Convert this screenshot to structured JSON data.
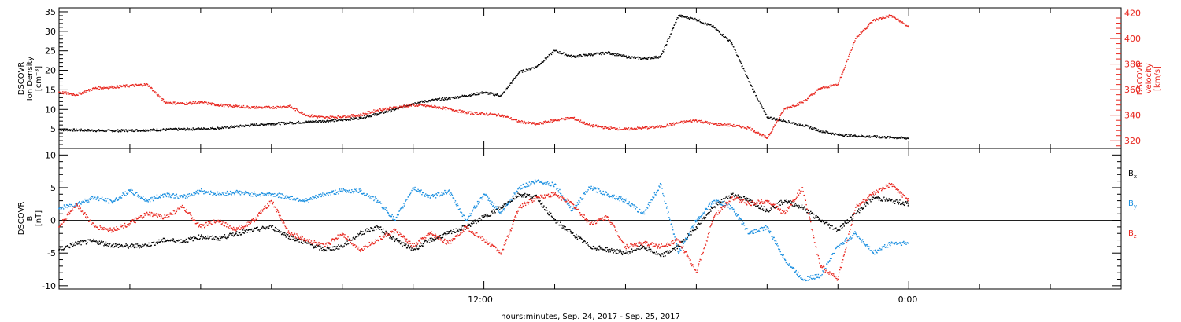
{
  "colors": {
    "black": "#000000",
    "red": "#e8261e",
    "blue": "#1a8fe0"
  },
  "xlabel": "hours:minutes, Sep. 24, 2017 - Sep. 25, 2017",
  "x_tick_labels": [
    "12:00",
    "0:00"
  ],
  "chart_data": [
    {
      "type": "scatter",
      "panel": "density-velocity",
      "xlim": [
        0,
        30
      ],
      "x_unit": "hours since 2017-09-24 00:00",
      "ylabel_left": [
        "DSCOVR",
        "Ion Density",
        "[cm⁻³]"
      ],
      "ylabel_right": [
        "DSCOVR",
        "Velocity",
        "[km/s]"
      ],
      "ylim_left": [
        0,
        36
      ],
      "ylim_right": [
        314,
        424
      ],
      "yticks_left": [
        "5",
        "10",
        "15",
        "20",
        "25",
        "30",
        "35"
      ],
      "yticks_right": [
        "320",
        "340",
        "360",
        "380",
        "400",
        "420"
      ],
      "series": [
        {
          "axis": "left",
          "color": "#000000",
          "x": [
            0,
            0.5,
            1,
            1.5,
            2,
            2.5,
            3,
            3.5,
            4,
            4.5,
            5,
            5.5,
            6,
            6.5,
            7,
            7.5,
            8,
            8.5,
            9,
            9.5,
            10,
            10.5,
            11,
            11.5,
            12,
            12.5,
            13,
            13.5,
            14,
            14.5,
            15,
            15.5,
            16,
            16.5,
            17,
            17.5,
            18,
            18.5,
            19,
            19.5,
            20,
            20.5,
            21,
            21.5,
            22,
            22.5,
            23,
            23.5,
            24
          ],
          "y": [
            4.8,
            4.7,
            4.6,
            4.5,
            4.6,
            4.7,
            4.8,
            4.9,
            5.0,
            5.2,
            5.6,
            6.0,
            6.3,
            6.5,
            6.8,
            7.0,
            7.3,
            7.8,
            8.8,
            10.0,
            11.5,
            12.3,
            12.8,
            13.5,
            14.3,
            13.5,
            19.5,
            21.0,
            25.0,
            23.5,
            24.0,
            24.5,
            23.5,
            23.0,
            23.5,
            34.0,
            33.0,
            31.0,
            27.0,
            17.0,
            8.0,
            7.0,
            6.0,
            4.5,
            3.5,
            3.2,
            3.0,
            2.8,
            2.6
          ]
        },
        {
          "axis": "right",
          "color": "#e8261e",
          "x": [
            0,
            0.5,
            1,
            1.5,
            2,
            2.5,
            3,
            3.5,
            4,
            4.5,
            5,
            5.5,
            6,
            6.5,
            7,
            7.5,
            8,
            8.5,
            9,
            9.5,
            10,
            10.5,
            11,
            11.5,
            12,
            12.5,
            13,
            13.5,
            14,
            14.5,
            15,
            15.5,
            16,
            16.5,
            17,
            17.5,
            18,
            18.5,
            19,
            19.5,
            20,
            20.5,
            21,
            21.5,
            22,
            22.5,
            23,
            23.5,
            24
          ],
          "y": [
            358,
            356,
            361,
            362,
            363,
            364,
            350,
            349,
            350,
            348,
            347,
            346,
            346,
            347,
            340,
            338,
            339,
            340,
            344,
            346,
            348,
            347,
            345,
            342,
            341,
            340,
            335,
            333,
            336,
            338,
            332,
            330,
            329,
            330,
            331,
            334,
            336,
            333,
            332,
            330,
            322,
            345,
            350,
            361,
            364,
            400,
            414,
            418,
            409
          ]
        }
      ]
    },
    {
      "type": "scatter",
      "panel": "magnetic-field",
      "xlim": [
        0,
        30
      ],
      "x_unit": "hours since 2017-09-24 00:00",
      "ylabel_left": [
        "DSCOVR",
        "B",
        "[nT]"
      ],
      "ylim": [
        -10.5,
        11
      ],
      "yticks": [
        "-10",
        "-5",
        "0",
        "5",
        "10"
      ],
      "zero_line": true,
      "legend": [
        "Bx",
        "By",
        "Bz"
      ],
      "legend_placement": "right",
      "series": [
        {
          "name": "Bx",
          "color": "#000000",
          "x": [
            0,
            0.5,
            1,
            1.5,
            2,
            2.5,
            3,
            3.5,
            4,
            4.5,
            5,
            5.5,
            6,
            6.5,
            7,
            7.5,
            8,
            8.5,
            9,
            9.5,
            10,
            10.5,
            11,
            11.5,
            12,
            12.5,
            13,
            13.5,
            14,
            14.5,
            15,
            15.5,
            16,
            16.5,
            17,
            17.5,
            18,
            18.5,
            19,
            19.5,
            20,
            20.5,
            21,
            21.5,
            22,
            22.5,
            23,
            23.5,
            24
          ],
          "y": [
            -4.5,
            -3.5,
            -3.2,
            -3.8,
            -4.0,
            -3.8,
            -3.0,
            -3.2,
            -2.5,
            -2.8,
            -2.0,
            -1.5,
            -1.0,
            -2.5,
            -3.5,
            -4.5,
            -4.0,
            -2.0,
            -1.0,
            -3.0,
            -4.5,
            -3.0,
            -2.0,
            -1.0,
            0.5,
            2.0,
            4.0,
            3.5,
            0.0,
            -2.0,
            -4.0,
            -4.5,
            -5.0,
            -4.0,
            -5.5,
            -4.0,
            -1.0,
            2.0,
            4.0,
            3.0,
            1.5,
            3.0,
            2.0,
            0.0,
            -1.5,
            1.0,
            3.5,
            3.0,
            2.5
          ]
        },
        {
          "name": "By",
          "color": "#1a8fe0",
          "x": [
            0,
            0.5,
            1,
            1.5,
            2,
            2.5,
            3,
            3.5,
            4,
            4.5,
            5,
            5.5,
            6,
            6.5,
            7,
            7.5,
            8,
            8.5,
            9,
            9.5,
            10,
            10.5,
            11,
            11.5,
            12,
            12.5,
            13,
            13.5,
            14,
            14.5,
            15,
            15.5,
            16,
            16.5,
            17,
            17.5,
            18,
            18.5,
            19,
            19.5,
            20,
            20.5,
            21,
            21.5,
            22,
            22.5,
            23,
            23.5,
            24
          ],
          "y": [
            1.8,
            2.5,
            3.5,
            2.8,
            4.5,
            3.0,
            4.0,
            3.5,
            4.5,
            4.0,
            4.3,
            4.0,
            4.0,
            3.5,
            3.0,
            4.0,
            4.5,
            4.5,
            3.0,
            0.0,
            5.0,
            3.5,
            4.5,
            0.0,
            4.0,
            1.0,
            5.0,
            6.0,
            5.5,
            1.5,
            5.0,
            4.0,
            3.0,
            1.0,
            5.5,
            -5.0,
            0.0,
            3.0,
            2.0,
            -2.0,
            -1.0,
            -6.0,
            -9.0,
            -8.5,
            -4.0,
            -2.0,
            -5.0,
            -3.5,
            -3.5
          ]
        },
        {
          "name": "Bz",
          "color": "#e8261e",
          "x": [
            0,
            0.5,
            1,
            1.5,
            2,
            2.5,
            3,
            3.5,
            4,
            4.5,
            5,
            5.5,
            6,
            6.5,
            7,
            7.5,
            8,
            8.5,
            9,
            9.5,
            10,
            10.5,
            11,
            11.5,
            12,
            12.5,
            13,
            13.5,
            14,
            14.5,
            15,
            15.5,
            16,
            16.5,
            17,
            17.5,
            18,
            18.5,
            19,
            19.5,
            20,
            20.5,
            21,
            21.5,
            22,
            22.5,
            23,
            23.5,
            24
          ],
          "y": [
            -1.0,
            2.5,
            -1.0,
            -1.5,
            -0.5,
            1.0,
            0.5,
            2.0,
            -1.0,
            0.0,
            -1.5,
            0.0,
            3.0,
            -2.0,
            -3.0,
            -4.0,
            -2.0,
            -4.5,
            -3.0,
            -1.5,
            -4.0,
            -2.0,
            -3.5,
            -1.0,
            -3.0,
            -5.0,
            2.0,
            3.5,
            4.0,
            2.5,
            -0.5,
            0.5,
            -4.0,
            -3.5,
            -4.0,
            -3.0,
            -8.0,
            0.5,
            3.5,
            2.5,
            3.0,
            1.0,
            5.0,
            -7.0,
            -9.0,
            2.0,
            4.0,
            5.5,
            3.0
          ]
        }
      ]
    }
  ]
}
